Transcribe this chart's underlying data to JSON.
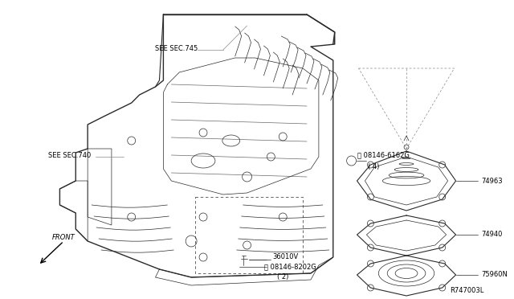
{
  "bg_color": "#ffffff",
  "line_color": "#2a2a2a",
  "gray_line": "#888888",
  "label_color": "#000000",
  "labels": {
    "see_sec745": "SEE SEC.745",
    "see_sec740": "SEE SEC.740",
    "part_74963": "74963",
    "part_74940": "74940",
    "part_75960N": "75960N",
    "ref_code": "R747003L",
    "front": "FRONT",
    "part_36010V": "36010V"
  }
}
